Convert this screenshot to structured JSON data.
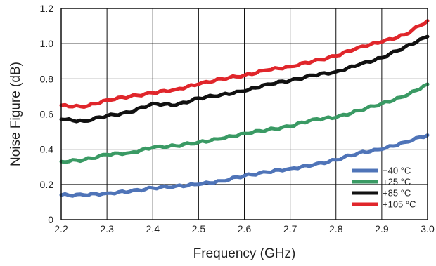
{
  "chart_data": {
    "type": "line",
    "xlabel": "Frequency (GHz)",
    "ylabel": "Noise Figure (dB)",
    "xlim": [
      2.2,
      3.0
    ],
    "ylim": [
      0,
      1.2
    ],
    "x_ticks": [
      "2.2",
      "2.3",
      "2.4",
      "2.5",
      "2.6",
      "2.7",
      "2.8",
      "2.9",
      "3.0"
    ],
    "y_ticks": [
      "0",
      "0.2",
      "0.4",
      "0.6",
      "0.8",
      "1.0",
      "1.2"
    ],
    "grid": true,
    "legend_position": "bottom-right",
    "x": [
      2.2,
      2.25,
      2.3,
      2.35,
      2.4,
      2.45,
      2.5,
      2.55,
      2.6,
      2.65,
      2.7,
      2.75,
      2.8,
      2.85,
      2.9,
      2.95,
      3.0
    ],
    "series": [
      {
        "name": "−40 °C",
        "color": "#4f74b8",
        "values": [
          0.14,
          0.14,
          0.15,
          0.16,
          0.18,
          0.19,
          0.2,
          0.22,
          0.25,
          0.27,
          0.29,
          0.31,
          0.34,
          0.38,
          0.4,
          0.44,
          0.48
        ]
      },
      {
        "name": "+25 °C",
        "color": "#3a9a64",
        "values": [
          0.33,
          0.34,
          0.37,
          0.38,
          0.41,
          0.42,
          0.44,
          0.46,
          0.49,
          0.51,
          0.53,
          0.57,
          0.58,
          0.62,
          0.66,
          0.7,
          0.77
        ]
      },
      {
        "name": "+85 °C",
        "color": "#111111",
        "values": [
          0.57,
          0.56,
          0.59,
          0.61,
          0.66,
          0.65,
          0.69,
          0.71,
          0.73,
          0.77,
          0.79,
          0.82,
          0.84,
          0.88,
          0.92,
          0.98,
          1.04
        ]
      },
      {
        "name": "+105 °C",
        "color": "#e0262b",
        "values": [
          0.65,
          0.64,
          0.68,
          0.7,
          0.72,
          0.74,
          0.77,
          0.8,
          0.82,
          0.85,
          0.87,
          0.9,
          0.93,
          0.98,
          1.01,
          1.05,
          1.13
        ]
      }
    ]
  }
}
